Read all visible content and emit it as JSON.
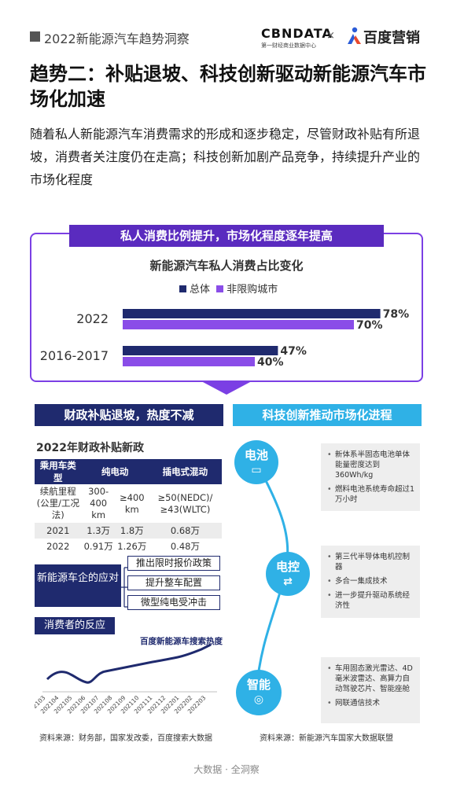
{
  "header": {
    "report_title": "2022新能源汽车趋势洞察",
    "logo_cbndata": "CBNDATA",
    "logo_cbndata_sub": "第一财经商业数据中心",
    "logo_x": "×",
    "logo_baidu": "百度营销"
  },
  "title": "趋势二：补贴退坡、科技创新驱动新能源汽车市场化加速",
  "intro": "随着私人新能源汽车消费需求的形成和逐步稳定，尽管财政补贴有所退坡，消费者关注度仍在走高；科技创新加剧产品竞争，持续提升产业的市场化程度",
  "private_section": {
    "banner": "私人消费比例提升，市场化程度逐年提高",
    "chart_title": "新能源汽车私人消费占比变化",
    "legend_total": "总体",
    "legend_unrestricted": "非限购城市"
  },
  "chart_data": {
    "type": "bar",
    "orientation": "horizontal",
    "title": "新能源汽车私人消费占比变化",
    "categories": [
      "2022",
      "2016-2017"
    ],
    "series": [
      {
        "name": "总体",
        "values": [
          78,
          47
        ],
        "labels": [
          "78%",
          "47%"
        ],
        "color": "#1f2a6e"
      },
      {
        "name": "非限购城市",
        "values": [
          70,
          40
        ],
        "labels": [
          "70%",
          "40%"
        ],
        "color": "#8a4de8"
      }
    ],
    "xlim": [
      0,
      100
    ],
    "grid": false,
    "legend_position": "top"
  },
  "subsidy": {
    "banner": "财政补贴退坡，热度不减",
    "subtitle": "2022年财政补贴新政",
    "headers": [
      "乘用车类型",
      "纯电动",
      "插电式混动"
    ],
    "rows": [
      [
        "续航里程(公里/工况法)",
        "300-400 km",
        "≥400 km",
        "≥50(NEDC)/≥43(WLTC)"
      ],
      [
        "2021",
        "1.3万",
        "1.8万",
        "0.68万"
      ],
      [
        "2022",
        "0.91万",
        "1.26万",
        "0.48万"
      ]
    ],
    "company_label": "新能源车企的应对",
    "actions": [
      "推出限时报价政策",
      "提升整车配置",
      "微型纯电受冲击"
    ],
    "consumer_label": "消费者的反应",
    "search_label": "百度新能源车搜索热度",
    "months": [
      "202103",
      "202104",
      "202105",
      "202106",
      "202107",
      "202108",
      "202109",
      "202110",
      "202111",
      "202112",
      "202201",
      "202202",
      "202203"
    ],
    "source": "资料来源：财务部，国家发改委，百度搜索大数据"
  },
  "tech": {
    "banner": "科技创新推动市场化进程",
    "nodes": [
      {
        "label": "电池",
        "icon": "battery-icon",
        "items": [
          "新体系半固态电池单体能量密度达到360Wh/kg",
          "燃料电池系统寿命超过1万小时"
        ]
      },
      {
        "label": "电控",
        "icon": "controller-icon",
        "items": [
          "第三代半导体电机控制器",
          "多合一集成技术",
          "进一步提升驱动系统经济性"
        ]
      },
      {
        "label": "智能",
        "icon": "steering-wheel-icon",
        "items": [
          "车用固态激光雷达、4D毫米波雷达、高算力自动驾驶芯片、智能座舱",
          "网联通信技术"
        ]
      }
    ],
    "source": "资料来源：新能源汽车国家大数据联盟"
  },
  "footer": "大数据 · 全洞察"
}
